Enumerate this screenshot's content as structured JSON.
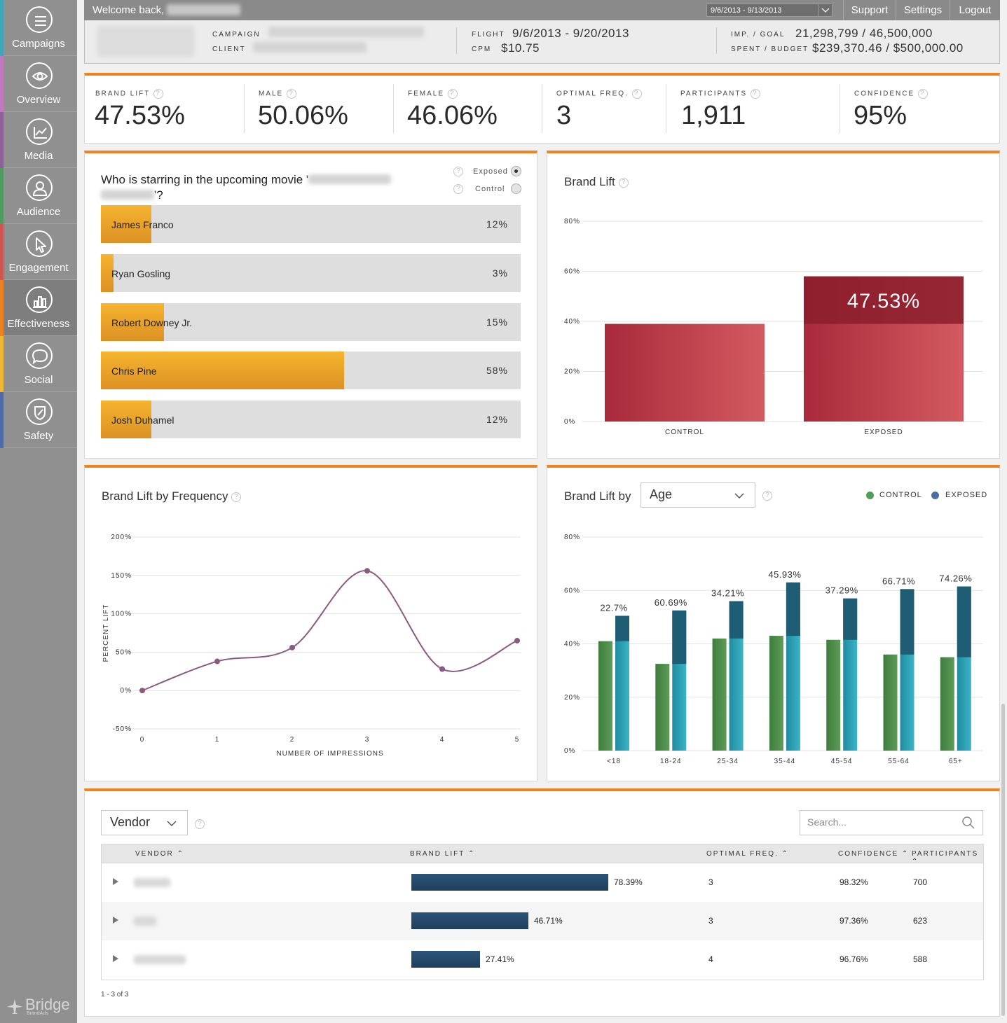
{
  "sidebar": {
    "items": [
      {
        "label": "Campaigns",
        "icon": "menu-icon",
        "color": "#3fa7b7"
      },
      {
        "label": "Overview",
        "icon": "eye-icon",
        "color": "#c277c0"
      },
      {
        "label": "Media",
        "icon": "chart-line-icon",
        "color": "#8c5f99"
      },
      {
        "label": "Audience",
        "icon": "user-icon",
        "color": "#4f9c63"
      },
      {
        "label": "Engagement",
        "icon": "cursor-icon",
        "color": "#cf5555"
      },
      {
        "label": "Effectiveness",
        "icon": "bar-chart-icon",
        "color": "#f08221"
      },
      {
        "label": "Social",
        "icon": "speech-bubble-icon",
        "color": "#f0b830"
      },
      {
        "label": "Safety",
        "icon": "shield-icon",
        "color": "#4f6aa6"
      }
    ],
    "active": "Effectiveness",
    "logo": {
      "name": "Bridge",
      "sub": "BrandAds"
    }
  },
  "header": {
    "welcome": "Welcome back,",
    "date_range": "9/6/2013 - 9/13/2013",
    "links": [
      "Support",
      "Settings",
      "Logout"
    ]
  },
  "campaign": {
    "campaign_label": "CAMPAIGN",
    "client_label": "CLIENT",
    "flight_label": "FLIGHT",
    "flight_value": "9/6/2013 - 9/20/2013",
    "cpm_label": "CPM",
    "cpm_value": "$10.75",
    "imp_label": "IMP. / GOAL",
    "imp_value": "21,298,799 / 46,500,000",
    "spent_label": "SPENT / BUDGET",
    "spent_value": "$239,370.46 / $500,000.00"
  },
  "kpis": [
    {
      "label": "BRAND LIFT",
      "value": "47.53%"
    },
    {
      "label": "MALE",
      "value": "50.06%"
    },
    {
      "label": "FEMALE",
      "value": "46.06%"
    },
    {
      "label": "OPTIMAL FREQ.",
      "value": "3"
    },
    {
      "label": "PARTICIPANTS",
      "value": "1,911"
    },
    {
      "label": "CONFIDENCE",
      "value": "95%"
    }
  ],
  "poll": {
    "question_start": "Who is starring in the upcoming movie '",
    "question_end": "'?",
    "exposed_label": "Exposed",
    "control_label": "Control",
    "options": [
      {
        "name": "James Franco",
        "pct_label": "12%",
        "fill": 0.12
      },
      {
        "name": "Ryan Gosling",
        "pct_label": "3%",
        "fill": 0.03
      },
      {
        "name": "Robert Downey Jr.",
        "pct_label": "15%",
        "fill": 0.15
      },
      {
        "name": "Chris Pine",
        "pct_label": "58%",
        "fill": 0.58
      },
      {
        "name": "Josh Duhamel",
        "pct_label": "12%",
        "fill": 0.12
      }
    ]
  },
  "chart_data": [
    {
      "type": "bar",
      "title": "Brand Lift",
      "categories": [
        "CONTROL",
        "EXPOSED"
      ],
      "values": [
        39,
        58
      ],
      "lift_value": 47.53,
      "annotation": "47.53%",
      "yticks": [
        "0%",
        "20%",
        "40%",
        "60%",
        "80%"
      ],
      "ylim": [
        0,
        80
      ],
      "colors": [
        "#b03542",
        "#8c1d2b"
      ]
    },
    {
      "type": "line",
      "title": "Brand Lift by Frequency",
      "xlabel": "NUMBER OF IMPRESSIONS",
      "ylabel": "PERCENT LIFT",
      "x": [
        0,
        1,
        2,
        3,
        4,
        5
      ],
      "values": [
        0,
        38,
        56,
        156,
        28,
        65
      ],
      "yticks": [
        "-50%",
        "0%",
        "50%",
        "100%",
        "150%",
        "200%"
      ],
      "ylim": [
        -50,
        200
      ],
      "color": "#8b5a80"
    },
    {
      "type": "bar",
      "title": "Brand Lift by",
      "categories": [
        "<18",
        "18-24",
        "25-34",
        "35-44",
        "45-54",
        "55-64",
        "65+"
      ],
      "series": [
        {
          "name": "CONTROL",
          "values": [
            41,
            32.5,
            42,
            43,
            41.5,
            36,
            35
          ]
        },
        {
          "name": "EXPOSED",
          "values": [
            50.5,
            52.5,
            56,
            63,
            57,
            60.5,
            61.5
          ]
        }
      ],
      "labels": [
        "22.7%",
        "60.69%",
        "34.21%",
        "45.93%",
        "37.29%",
        "66.71%",
        "74.26%"
      ],
      "yticks": [
        "0%",
        "20%",
        "40%",
        "60%",
        "80%"
      ],
      "ylim": [
        0,
        80
      ],
      "colors": [
        "#4c8c48",
        "#2a9fb5",
        "#1e5d73"
      ],
      "legend_placement": "top-right"
    }
  ],
  "age_filter": {
    "selected": "Age"
  },
  "legend": {
    "control": "CONTROL",
    "exposed": "EXPOSED",
    "control_color": "#4f9e5a",
    "exposed_color": "#4a6fa5"
  },
  "vendor_section": {
    "group_by": "Vendor",
    "search_placeholder": "Search...",
    "columns": [
      "VENDOR",
      "BRAND LIFT",
      "OPTIMAL FREQ.",
      "CONFIDENCE",
      "PARTICIPANTS"
    ],
    "rows": [
      {
        "lift_label": "78.39%",
        "lift": 78.39,
        "freq": "3",
        "confidence": "98.32%",
        "participants": "700"
      },
      {
        "lift_label": "46.71%",
        "lift": 46.71,
        "freq": "3",
        "confidence": "97.36%",
        "participants": "623"
      },
      {
        "lift_label": "27.41%",
        "lift": 27.41,
        "freq": "4",
        "confidence": "96.76%",
        "participants": "588"
      }
    ],
    "pagination": "1 - 3 of 3"
  }
}
